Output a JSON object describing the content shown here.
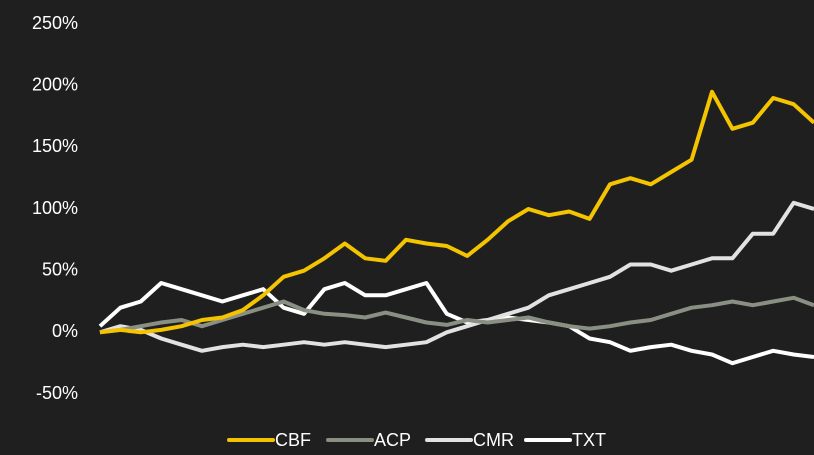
{
  "chart_data": {
    "type": "line",
    "categories": [
      null,
      null,
      null,
      null,
      null,
      null,
      null,
      null,
      null,
      null,
      null,
      null,
      null,
      null,
      null,
      null,
      null,
      null,
      null,
      null,
      null,
      null,
      null,
      null,
      null,
      null,
      null,
      null,
      null,
      null,
      null,
      null,
      null,
      null,
      null,
      null
    ],
    "series": [
      {
        "name": "CBF",
        "color": "#f5c400",
        "values": [
          0,
          2,
          0,
          2,
          5,
          10,
          12,
          18,
          30,
          45,
          50,
          60,
          72,
          60,
          58,
          75,
          72,
          70,
          62,
          75,
          90,
          100,
          95,
          98,
          92,
          120,
          125,
          120,
          130,
          140,
          195,
          165,
          170,
          190,
          185,
          170
        ]
      },
      {
        "name": "ACP",
        "color": "#8a8f83",
        "values": [
          0,
          2,
          5,
          8,
          10,
          5,
          10,
          15,
          20,
          25,
          18,
          15,
          14,
          12,
          16,
          12,
          8,
          6,
          10,
          8,
          10,
          12,
          8,
          5,
          3,
          5,
          8,
          10,
          15,
          20,
          22,
          25,
          22,
          25,
          28,
          22
        ]
      },
      {
        "name": "CMR",
        "color": "#e2e2e2",
        "values": [
          0,
          5,
          2,
          -5,
          -10,
          -15,
          -12,
          -10,
          -12,
          -10,
          -8,
          -10,
          -8,
          -10,
          -12,
          -10,
          -8,
          0,
          5,
          10,
          15,
          20,
          30,
          35,
          40,
          45,
          55,
          55,
          50,
          55,
          60,
          60,
          80,
          80,
          105,
          100
        ]
      },
      {
        "name": "TXT",
        "color": "#ffffff",
        "values": [
          5,
          20,
          25,
          40,
          35,
          30,
          25,
          30,
          35,
          20,
          15,
          35,
          40,
          30,
          30,
          35,
          40,
          15,
          8,
          10,
          12,
          10,
          8,
          5,
          -5,
          -8,
          -15,
          -12,
          -10,
          -15,
          -18,
          -25,
          -20,
          -15,
          -18,
          -20
        ]
      }
    ],
    "ylim": [
      -50,
      250
    ],
    "yticks": [
      {
        "value": -50,
        "label": "-50%"
      },
      {
        "value": 0,
        "label": "0%"
      },
      {
        "value": 50,
        "label": "50%"
      },
      {
        "value": 100,
        "label": "100%"
      },
      {
        "value": 150,
        "label": "150%"
      },
      {
        "value": 200,
        "label": "200%"
      },
      {
        "value": 250,
        "label": "250%"
      }
    ],
    "grid": false,
    "legend": "bottom"
  }
}
